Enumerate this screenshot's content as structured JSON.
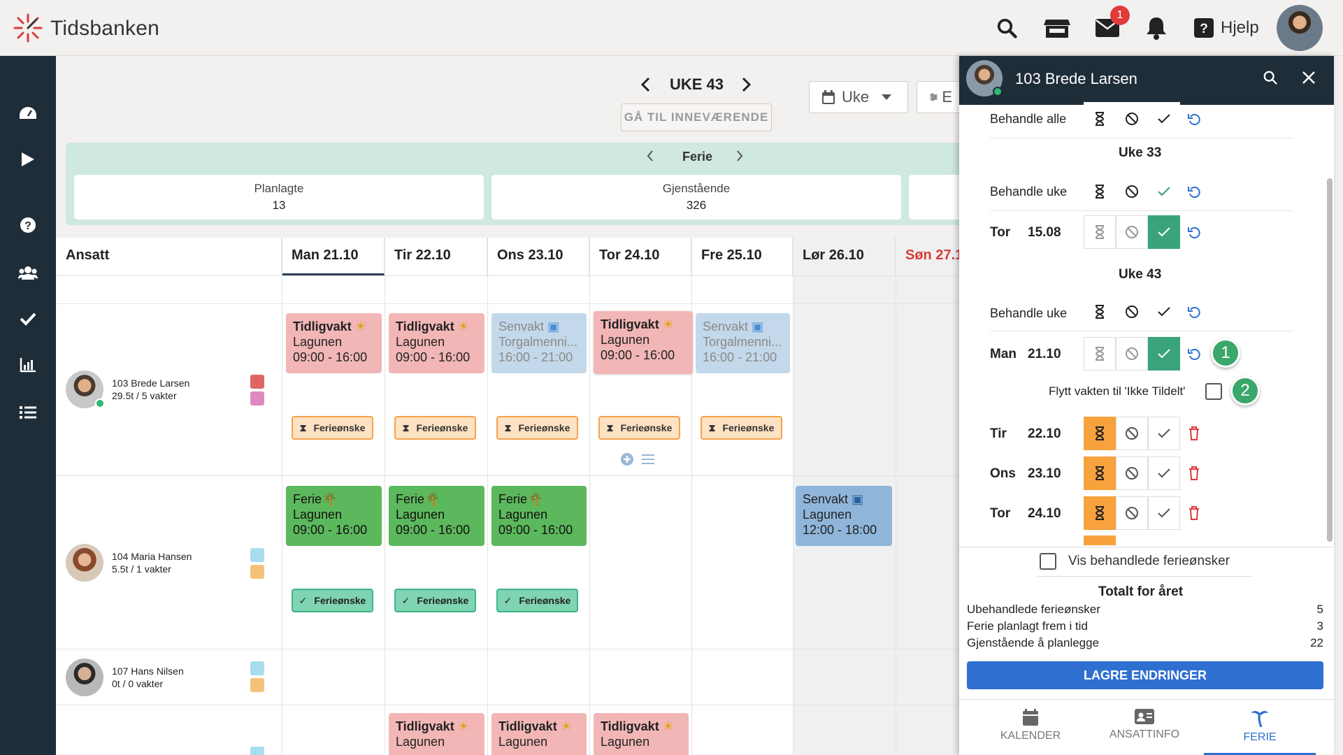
{
  "app": {
    "brand": "Tidsbanken",
    "help_label": "Hjelp",
    "mail_badge": "1"
  },
  "week": {
    "label": "UKE 43",
    "goto_label": "GÅ TIL INNEVÆRENDE",
    "view_label": "Uke",
    "filter_label": "E"
  },
  "summary": {
    "title": "Ferie",
    "cards": [
      {
        "label": "Planlagte",
        "value": "13"
      },
      {
        "label": "Gjenstående",
        "value": "326"
      }
    ]
  },
  "grid": {
    "employee_header": "Ansatt",
    "days": [
      "Man 21.10",
      "Tir 22.10",
      "Ons 23.10",
      "Tor 24.10",
      "Fre 25.10",
      "Lør 26.10",
      "Søn 27.1"
    ],
    "employees": [
      {
        "name": "103 Brede Larsen",
        "hours": "29.5t / 5 vakter"
      },
      {
        "name": "104 Maria Hansen",
        "hours": "5.5t / 1 vakter"
      },
      {
        "name": "107 Hans Nilsen",
        "hours": "0t / 0 vakter"
      }
    ],
    "shifts": {
      "tidlig": "Tidligvakt",
      "sen": "Senvakt",
      "ferie": "Ferie",
      "lagunen": "Lagunen",
      "torgal": "Torgalmenni...",
      "t_9_16": "09:00 - 16:00",
      "t_16_21": "16:00 - 21:00",
      "t_12_18": "12:00 - 18:00"
    },
    "request_label": "Ferieønske"
  },
  "panel": {
    "name": "103 Brede Larsen",
    "handle_all": "Behandle alle",
    "week33": "Uke 33",
    "week43": "Uke 43",
    "handle_week": "Behandle uke",
    "rows": [
      {
        "day": "Tor",
        "date": "15.08"
      },
      {
        "day": "Man",
        "date": "21.10"
      },
      {
        "day": "Tir",
        "date": "22.10"
      },
      {
        "day": "Ons",
        "date": "23.10"
      },
      {
        "day": "Tor",
        "date": "24.10"
      }
    ],
    "move_label": "Flytt vakten til 'Ikke Tildelt'",
    "marker1": "1",
    "marker2": "2",
    "show_processed": "Vis behandlede ferieønsker",
    "totals_title": "Totalt for året",
    "totals": [
      {
        "label": "Ubehandlede ferieønsker",
        "value": "5"
      },
      {
        "label": "Ferie planlagt frem i tid",
        "value": "3"
      },
      {
        "label": "Gjenstående å planlegge",
        "value": "22"
      }
    ],
    "save_label": "LAGRE ENDRINGER",
    "tabs": [
      "KALENDER",
      "ANSATTINFO",
      "FERIE"
    ]
  },
  "colors": {
    "accent": "#2f6fd0",
    "sidebar": "#1f2d39",
    "approve": "#3aa37a",
    "pending": "#f7a23c",
    "shift_red": "#f2b6b6",
    "shift_green": "#5cb85c",
    "shift_blue": "#8fb6da"
  }
}
